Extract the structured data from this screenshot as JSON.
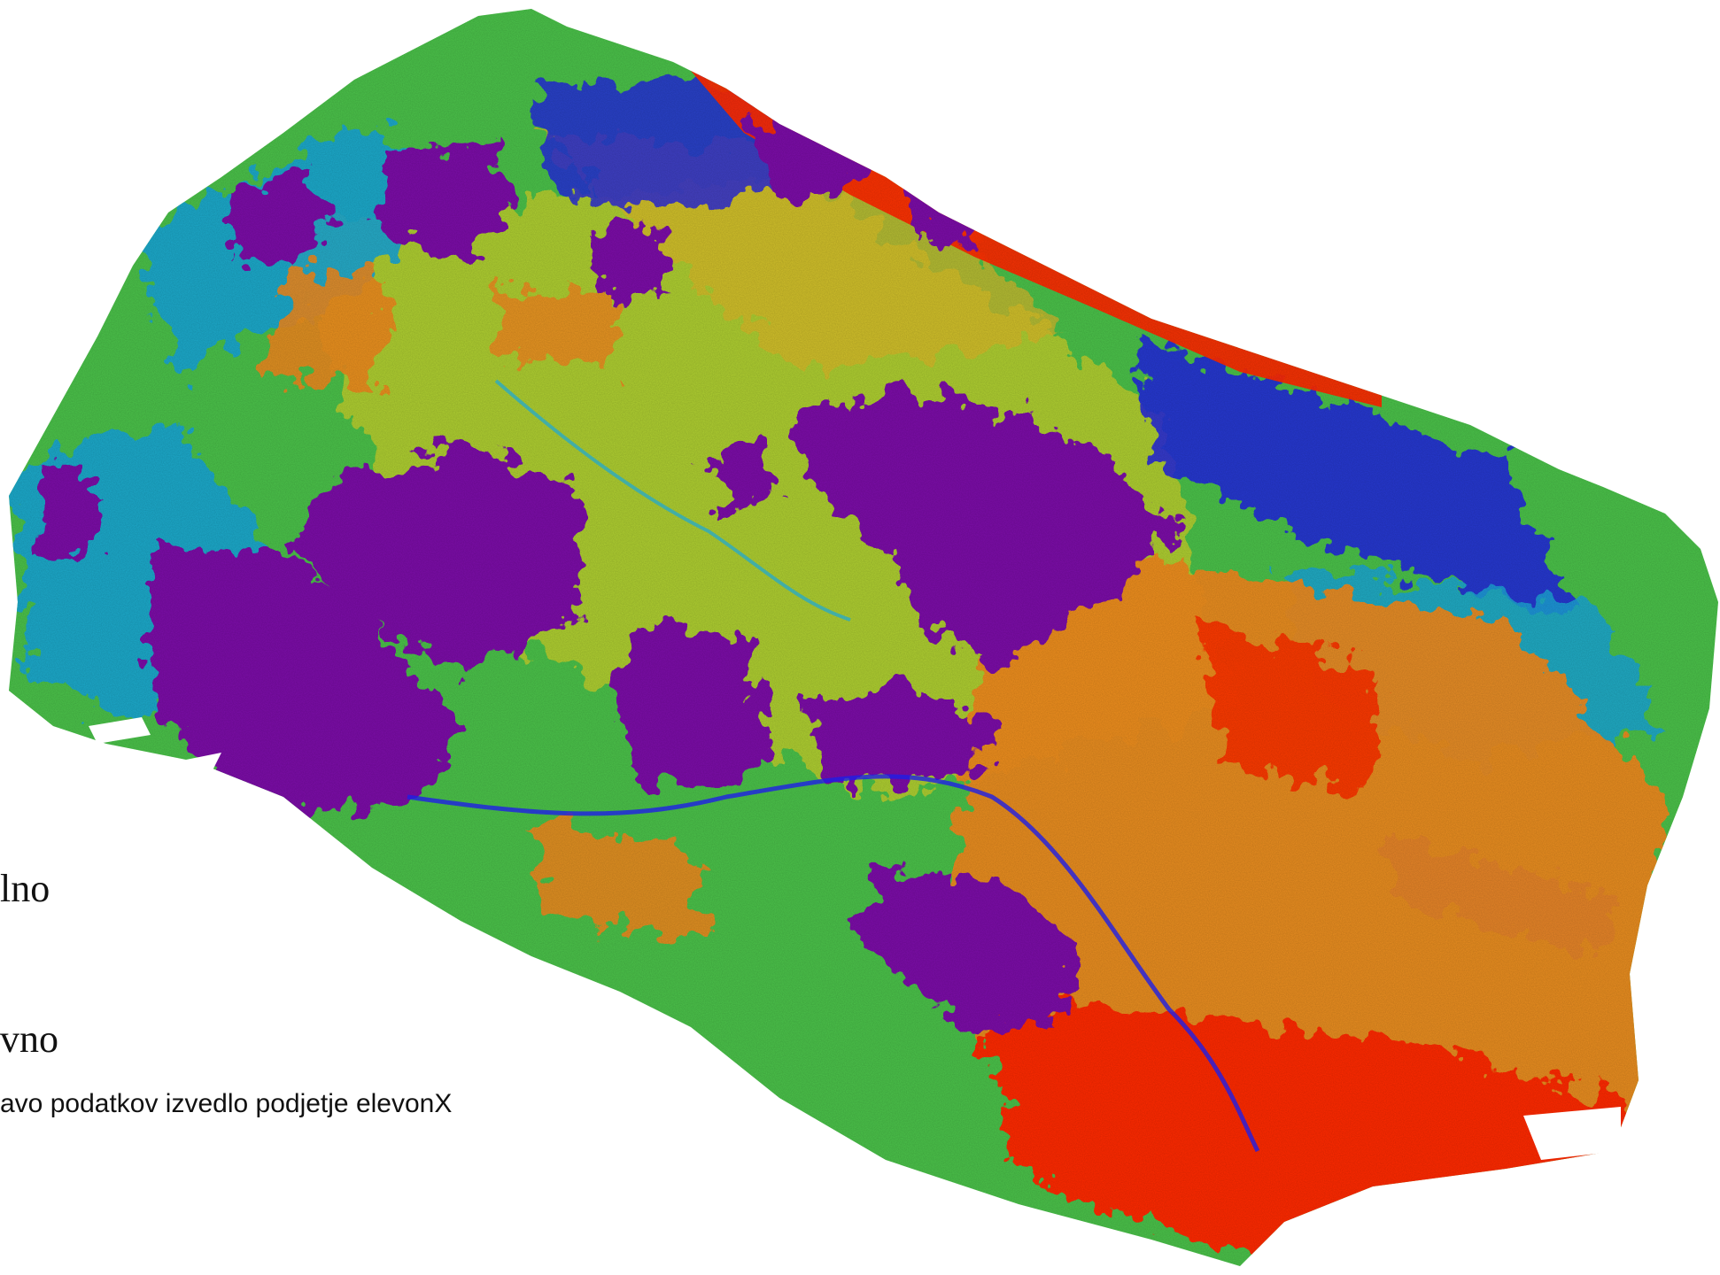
{
  "legend": {
    "label_1": "lno",
    "label_2": "vno"
  },
  "credit": "avo podatkov izvedlo podjetje elevonX",
  "map_colors": {
    "purple": "#7b10a8",
    "blue": "#1e1ee6",
    "cyan": "#1aa6d8",
    "green": "#4bc24a",
    "yellow": "#d4d22a",
    "orange": "#f08a1c",
    "red": "#ff2a00"
  },
  "map_description_type": "false-color raster survey map"
}
